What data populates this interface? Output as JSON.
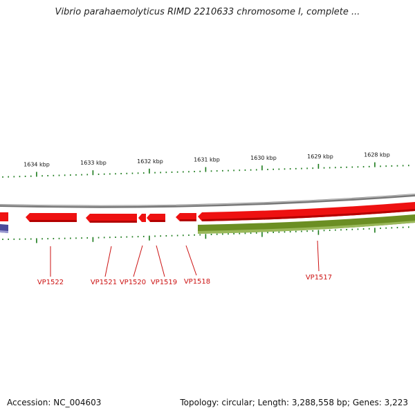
{
  "title": "Vibrio parahaemolyticus RIMD 2210633 chromosome I, complete ...",
  "footer": {
    "accession": "Accession: NC_004603",
    "summary": "Topology: circular; Length: 3,288,558 bp; Genes: 3,223"
  },
  "colors": {
    "gene_red": "#ee1111",
    "gene_red_dark": "#aa0000",
    "olive": "#6b8e23",
    "olive_dark": "#4a6b12",
    "backbone": "#888888",
    "tick": "#1a7a1a",
    "label": "#cc1111",
    "blue": "#4a4a9a"
  },
  "scale_labels": [
    "1634 kbp",
    "1633 kbp",
    "1632 kbp",
    "1631 kbp",
    "1630 kbp",
    "1629 kbp",
    "1628 kbp"
  ],
  "gene_labels": [
    "VP1522",
    "VP1521",
    "VP1520",
    "VP1519",
    "VP1518",
    "VP1517"
  ]
}
